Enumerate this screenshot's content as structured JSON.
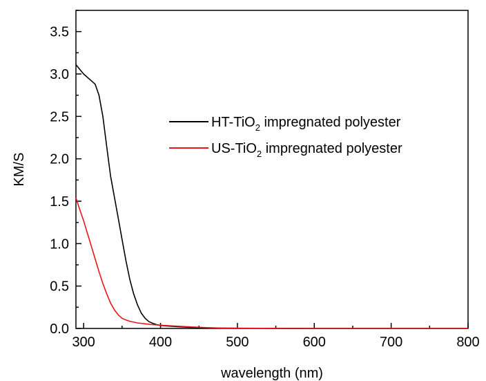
{
  "chart_data": {
    "type": "line",
    "xlabel": "wavelength (nm)",
    "ylabel": "KM/S",
    "xlim": [
      290,
      800
    ],
    "ylim": [
      0,
      3.75
    ],
    "xticks": [
      "300",
      "400",
      "500",
      "600",
      "700",
      "800"
    ],
    "yticks": [
      "0.0",
      "0.5",
      "1.0",
      "1.5",
      "2.0",
      "2.5",
      "3.0",
      "3.5"
    ],
    "grid": false,
    "legend_position": "top-right",
    "series": [
      {
        "name_parts": [
          "HT-TiO",
          "2",
          " impregnated polyester"
        ],
        "color": "#000000",
        "x": [
          290,
          300,
          310,
          315,
          320,
          325,
          330,
          335,
          340,
          345,
          350,
          355,
          360,
          365,
          370,
          375,
          380,
          385,
          390,
          395,
          400,
          410,
          420,
          440,
          460,
          480,
          500,
          550,
          600,
          700,
          800
        ],
        "y": [
          3.11,
          3.0,
          2.92,
          2.88,
          2.75,
          2.5,
          2.15,
          1.8,
          1.55,
          1.3,
          1.05,
          0.8,
          0.58,
          0.41,
          0.28,
          0.18,
          0.12,
          0.08,
          0.06,
          0.045,
          0.035,
          0.028,
          0.022,
          0.012,
          0.006,
          0.003,
          0.002,
          0.001,
          0.0,
          0.0,
          0.0
        ]
      },
      {
        "name_parts": [
          "US-TiO",
          "2",
          " impregnated polyester"
        ],
        "color": "#e8141b",
        "x": [
          290,
          295,
          300,
          305,
          310,
          315,
          320,
          325,
          330,
          335,
          340,
          345,
          350,
          355,
          360,
          370,
          380,
          390,
          400,
          420,
          440,
          460,
          480,
          500,
          550,
          600,
          700,
          800
        ],
        "y": [
          1.54,
          1.4,
          1.27,
          1.12,
          0.97,
          0.82,
          0.67,
          0.53,
          0.41,
          0.3,
          0.22,
          0.16,
          0.12,
          0.1,
          0.085,
          0.065,
          0.055,
          0.045,
          0.038,
          0.028,
          0.018,
          0.01,
          0.005,
          0.003,
          0.001,
          0.0,
          0.0,
          0.0
        ]
      }
    ]
  }
}
